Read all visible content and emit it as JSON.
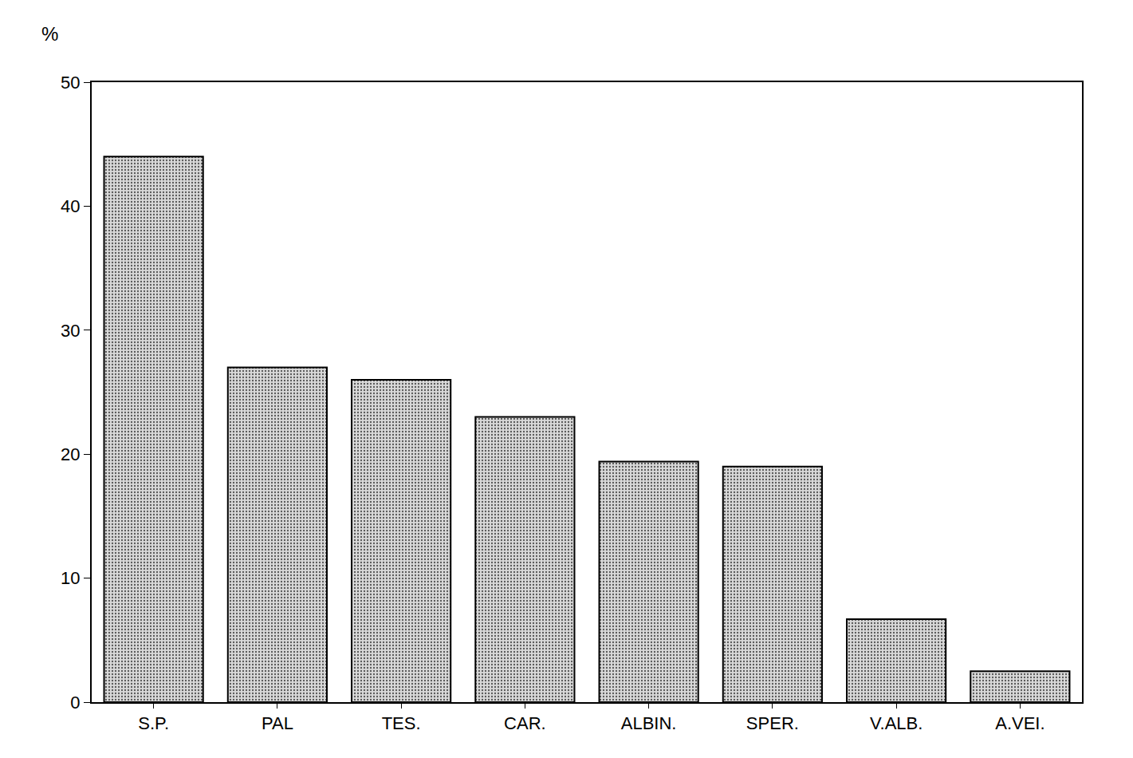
{
  "chart_data": {
    "type": "bar",
    "ylabel": "%",
    "categories": [
      "S.P.",
      "PAL",
      "TES.",
      "CAR.",
      "ALBIN.",
      "SPER.",
      "V.ALB.",
      "A.VEI."
    ],
    "values": [
      44,
      27,
      26,
      23,
      19.4,
      19,
      6.7,
      2.5
    ],
    "color": "#d9d9d9",
    "ylim": [
      0,
      50
    ],
    "yticks": [
      0,
      10,
      20,
      30,
      40,
      50
    ],
    "grid": false
  }
}
